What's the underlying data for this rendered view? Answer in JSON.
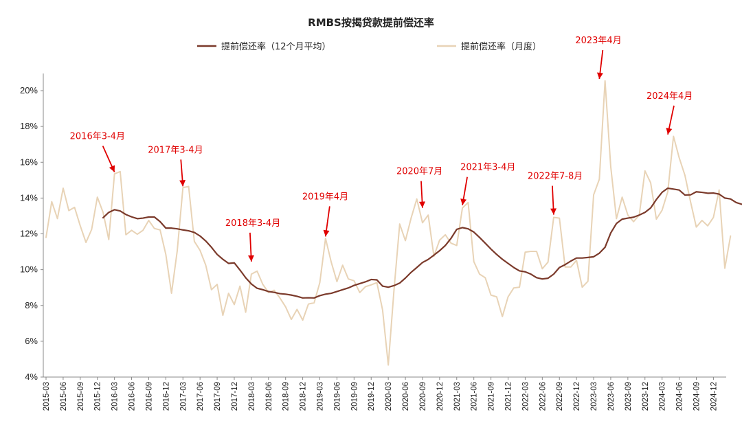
{
  "chart_data": {
    "type": "line",
    "title": "RMBS按揭贷款提前偿还率",
    "xlabel": "",
    "ylabel": "",
    "ylim": [
      0.04,
      0.21
    ],
    "yticks": [
      "4%",
      "6%",
      "8%",
      "10%",
      "12%",
      "14%",
      "16%",
      "18%",
      "20%"
    ],
    "x_tick_labels": [
      "2015-03",
      "2015-06",
      "2015-09",
      "2015-12",
      "2016-03",
      "2016-06",
      "2016-09",
      "2016-12",
      "2017-03",
      "2017-06",
      "2017-09",
      "2017-12",
      "2018-03",
      "2018-06",
      "2018-09",
      "2018-12",
      "2019-03",
      "2019-06",
      "2019-09",
      "2019-12",
      "2020-03",
      "2020-06",
      "2020-09",
      "2020-12",
      "2021-03",
      "2021-06",
      "2021-09",
      "2021-12",
      "2022-03",
      "2022-06",
      "2022-09",
      "2022-12",
      "2023-03",
      "2023-06",
      "2023-09",
      "2023-12",
      "2024-03",
      "2024-06",
      "2024-09",
      "2024-12"
    ],
    "x_start": "2015-03",
    "legend_position": "top-center",
    "colors": {
      "avg": "#7b3a2b",
      "monthly": "#e8d3b6",
      "annotation": "#e00000"
    },
    "series": [
      {
        "name": "提前偿还率（12个月平均）",
        "start": "2016-01",
        "values": [
          0.129,
          0.132,
          0.1335,
          0.1328,
          0.1308,
          0.1295,
          0.1285,
          0.1288,
          0.1294,
          0.1294,
          0.1268,
          0.1232,
          0.1232,
          0.1228,
          0.1222,
          0.1217,
          0.1208,
          0.1188,
          0.116,
          0.1125,
          0.1085,
          0.1058,
          0.1035,
          0.1038,
          0.0998,
          0.0955,
          0.092,
          0.0896,
          0.0888,
          0.0878,
          0.0873,
          0.0866,
          0.0863,
          0.0858,
          0.0851,
          0.0842,
          0.0843,
          0.0842,
          0.0855,
          0.0863,
          0.0868,
          0.0878,
          0.0888,
          0.0898,
          0.0912,
          0.0922,
          0.0932,
          0.0945,
          0.0943,
          0.0908,
          0.0902,
          0.0911,
          0.0925,
          0.0953,
          0.0985,
          0.1012,
          0.104,
          0.1057,
          0.1081,
          0.1106,
          0.1135,
          0.1175,
          0.1225,
          0.1235,
          0.1228,
          0.121,
          0.118,
          0.1148,
          0.1115,
          0.1085,
          0.1058,
          0.1035,
          0.1012,
          0.0993,
          0.0988,
          0.0975,
          0.0955,
          0.0948,
          0.0952,
          0.0975,
          0.1012,
          0.1028,
          0.1048,
          0.1065,
          0.1065,
          0.1068,
          0.1072,
          0.1092,
          0.1125,
          0.1205,
          0.1258,
          0.1282,
          0.1288,
          0.1293,
          0.1305,
          0.132,
          0.1345,
          0.1392,
          0.1432,
          0.1455,
          0.145,
          0.1445,
          0.1417,
          0.1418,
          0.1435,
          0.1432,
          0.1427,
          0.1428,
          0.1422,
          0.14,
          0.1395,
          0.1375,
          0.1365
        ]
      },
      {
        "name": "提前偿还率（月度）",
        "start": "2015-03",
        "values": [
          0.118,
          0.138,
          0.1285,
          0.1455,
          0.133,
          0.1348,
          0.1245,
          0.1152,
          0.1225,
          0.1405,
          0.132,
          0.1168,
          0.1535,
          0.1548,
          0.1195,
          0.122,
          0.1198,
          0.122,
          0.1275,
          0.123,
          0.1222,
          0.1085,
          0.0868,
          0.1105,
          0.1458,
          0.1465,
          0.1158,
          0.1108,
          0.1025,
          0.0888,
          0.0918,
          0.0745,
          0.0868,
          0.0805,
          0.0908,
          0.0762,
          0.0975,
          0.0992,
          0.0918,
          0.0872,
          0.0885,
          0.0842,
          0.0792,
          0.0722,
          0.0778,
          0.0718,
          0.0808,
          0.0815,
          0.0928,
          0.1175,
          0.1042,
          0.0933,
          0.1025,
          0.0948,
          0.0938,
          0.0872,
          0.0905,
          0.0915,
          0.0928,
          0.0775,
          0.0467,
          0.0885,
          0.1255,
          0.1162,
          0.1288,
          0.1395,
          0.1262,
          0.1305,
          0.1075,
          0.1165,
          0.1195,
          0.1148,
          0.1135,
          0.1345,
          0.1375,
          0.1045,
          0.0975,
          0.0955,
          0.0858,
          0.0848,
          0.0738,
          0.0848,
          0.0898,
          0.0902,
          0.1098,
          0.1102,
          0.1102,
          0.1005,
          0.1042,
          0.1292,
          0.1288,
          0.1015,
          0.1015,
          0.1052,
          0.0902,
          0.0935,
          0.1418,
          0.1505,
          0.2055,
          0.1575,
          0.1285,
          0.1405,
          0.1305,
          0.1268,
          0.1305,
          0.1552,
          0.1485,
          0.1282,
          0.1332,
          0.1435,
          0.1745,
          0.1625,
          0.1528,
          0.1378,
          0.1238,
          0.1275,
          0.1245,
          0.1292,
          0.1445,
          0.1008,
          0.1188
        ]
      }
    ],
    "annotations": [
      {
        "text": "2016年3-4月",
        "target": "2016-03",
        "y": 0.153
      },
      {
        "text": "2017年3-4月",
        "target": "2017-03",
        "y": 0.145
      },
      {
        "text": "2018年3-4月",
        "target": "2018-03",
        "y": 0.103
      },
      {
        "text": "2019年4月",
        "target": "2019-04",
        "y": 0.117
      },
      {
        "text": "2020年7月",
        "target": "2020-09",
        "y": 0.133
      },
      {
        "text": "2021年3-4月",
        "target": "2021-04",
        "y": 0.1345
      },
      {
        "text": "2022年7-8月",
        "target": "2022-08",
        "y": 0.1292
      },
      {
        "text": "2023年4月",
        "target": "2023-04",
        "y": 0.205
      },
      {
        "text": "2024年4月",
        "target": "2024-04",
        "y": 0.174
      }
    ]
  }
}
